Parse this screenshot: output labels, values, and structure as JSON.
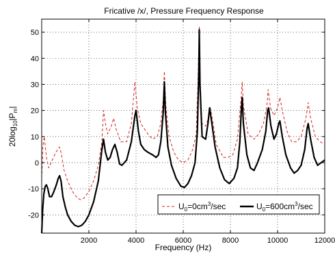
{
  "chart_data": {
    "type": "line",
    "title": "Fricative /x/, Pressure Frequency Response",
    "xlabel": "Frequency (Hz)",
    "ylabel": {
      "base": "20log",
      "sub1": "10",
      "mid": "|P",
      "sub2": "m",
      "end": "|"
    },
    "xlim": [
      0,
      12000
    ],
    "ylim": [
      -27,
      55
    ],
    "xticks": [
      2000,
      4000,
      6000,
      8000,
      10000,
      12000
    ],
    "yticks": [
      -20,
      -10,
      0,
      10,
      20,
      30,
      40,
      50
    ],
    "grid": true,
    "legend": {
      "placement": "bottom-right",
      "entries": [
        {
          "prefix": "U",
          "sub": "0",
          "mid": "=0cm",
          "sup": "3",
          "end": "/sec"
        },
        {
          "prefix": "U",
          "sub": "0",
          "mid": "=600cm",
          "sup": "3",
          "end": "/sec"
        }
      ]
    },
    "series": [
      {
        "style": "dashed",
        "color": "#d62020",
        "points": [
          [
            0,
            -6
          ],
          [
            50,
            6
          ],
          [
            110,
            10
          ],
          [
            200,
            2
          ],
          [
            300,
            -2
          ],
          [
            450,
            1
          ],
          [
            600,
            4
          ],
          [
            750,
            6
          ],
          [
            820,
            4
          ],
          [
            950,
            -3
          ],
          [
            1100,
            -7
          ],
          [
            1300,
            -11
          ],
          [
            1500,
            -13.5
          ],
          [
            1650,
            -14.2
          ],
          [
            1800,
            -13.5
          ],
          [
            2000,
            -11
          ],
          [
            2200,
            -7
          ],
          [
            2400,
            -1
          ],
          [
            2550,
            8
          ],
          [
            2620,
            20
          ],
          [
            2700,
            15
          ],
          [
            2800,
            11
          ],
          [
            2950,
            14
          ],
          [
            3050,
            17
          ],
          [
            3150,
            13
          ],
          [
            3350,
            8
          ],
          [
            3600,
            8
          ],
          [
            3800,
            15
          ],
          [
            3950,
            31
          ],
          [
            4050,
            21
          ],
          [
            4200,
            15
          ],
          [
            4350,
            13
          ],
          [
            4500,
            11
          ],
          [
            4700,
            9
          ],
          [
            4900,
            10
          ],
          [
            5050,
            15
          ],
          [
            5150,
            24
          ],
          [
            5200,
            35
          ],
          [
            5260,
            22
          ],
          [
            5400,
            10
          ],
          [
            5600,
            4
          ],
          [
            5800,
            1
          ],
          [
            6000,
            0
          ],
          [
            6200,
            1
          ],
          [
            6400,
            5
          ],
          [
            6550,
            11
          ],
          [
            6620,
            30
          ],
          [
            6680,
            52
          ],
          [
            6720,
            28
          ],
          [
            6800,
            15
          ],
          [
            6950,
            14
          ],
          [
            7100,
            18
          ],
          [
            7150,
            21
          ],
          [
            7250,
            16
          ],
          [
            7400,
            7
          ],
          [
            7700,
            2
          ],
          [
            7900,
            2
          ],
          [
            8100,
            3
          ],
          [
            8300,
            9
          ],
          [
            8450,
            24
          ],
          [
            8500,
            31
          ],
          [
            8550,
            22
          ],
          [
            8750,
            11
          ],
          [
            9000,
            9
          ],
          [
            9200,
            11
          ],
          [
            9400,
            15
          ],
          [
            9550,
            22
          ],
          [
            9600,
            28
          ],
          [
            9700,
            21
          ],
          [
            9850,
            18
          ],
          [
            10000,
            21
          ],
          [
            10100,
            25
          ],
          [
            10200,
            20
          ],
          [
            10400,
            12
          ],
          [
            10600,
            8
          ],
          [
            10800,
            8
          ],
          [
            11000,
            10
          ],
          [
            11200,
            17
          ],
          [
            11300,
            23
          ],
          [
            11400,
            17
          ],
          [
            11600,
            10
          ],
          [
            11800,
            8
          ],
          [
            12000,
            7
          ]
        ]
      },
      {
        "style": "solid",
        "color": "#000000",
        "points": [
          [
            0,
            -27
          ],
          [
            40,
            -18
          ],
          [
            90,
            -12
          ],
          [
            150,
            -9
          ],
          [
            200,
            -8.5
          ],
          [
            260,
            -10
          ],
          [
            330,
            -13
          ],
          [
            420,
            -13
          ],
          [
            520,
            -11
          ],
          [
            620,
            -8.5
          ],
          [
            700,
            -6
          ],
          [
            760,
            -5
          ],
          [
            820,
            -7
          ],
          [
            900,
            -13
          ],
          [
            1000,
            -17
          ],
          [
            1100,
            -20
          ],
          [
            1250,
            -22.5
          ],
          [
            1400,
            -24
          ],
          [
            1550,
            -24.5
          ],
          [
            1700,
            -24
          ],
          [
            1850,
            -22.5
          ],
          [
            2000,
            -20
          ],
          [
            2200,
            -15
          ],
          [
            2400,
            -7
          ],
          [
            2550,
            5
          ],
          [
            2620,
            9
          ],
          [
            2700,
            4
          ],
          [
            2800,
            1
          ],
          [
            2900,
            2
          ],
          [
            3000,
            5
          ],
          [
            3100,
            7
          ],
          [
            3200,
            4
          ],
          [
            3300,
            -0.5
          ],
          [
            3400,
            -1
          ],
          [
            3600,
            1
          ],
          [
            3800,
            8
          ],
          [
            3950,
            18
          ],
          [
            4000,
            20
          ],
          [
            4100,
            12
          ],
          [
            4200,
            7
          ],
          [
            4350,
            5
          ],
          [
            4500,
            4
          ],
          [
            4700,
            3
          ],
          [
            4850,
            2
          ],
          [
            4950,
            3
          ],
          [
            5050,
            8
          ],
          [
            5150,
            19
          ],
          [
            5200,
            31
          ],
          [
            5240,
            20
          ],
          [
            5350,
            6
          ],
          [
            5500,
            -1
          ],
          [
            5700,
            -6
          ],
          [
            5900,
            -9
          ],
          [
            6050,
            -9.5
          ],
          [
            6200,
            -8
          ],
          [
            6350,
            -5
          ],
          [
            6500,
            0
          ],
          [
            6600,
            12
          ],
          [
            6660,
            35
          ],
          [
            6680,
            51
          ],
          [
            6710,
            30
          ],
          [
            6800,
            10
          ],
          [
            6950,
            9
          ],
          [
            7050,
            15
          ],
          [
            7120,
            21
          ],
          [
            7200,
            16
          ],
          [
            7350,
            6
          ],
          [
            7550,
            -2
          ],
          [
            7750,
            -6.5
          ],
          [
            7950,
            -8
          ],
          [
            8150,
            -6
          ],
          [
            8300,
            -2
          ],
          [
            8400,
            8
          ],
          [
            8460,
            20
          ],
          [
            8500,
            25
          ],
          [
            8550,
            15
          ],
          [
            8700,
            3
          ],
          [
            8850,
            -2
          ],
          [
            9000,
            -3
          ],
          [
            9150,
            0
          ],
          [
            9350,
            5
          ],
          [
            9500,
            12
          ],
          [
            9580,
            20
          ],
          [
            9620,
            21
          ],
          [
            9720,
            14
          ],
          [
            9850,
            9
          ],
          [
            9950,
            11
          ],
          [
            10050,
            15
          ],
          [
            10100,
            16
          ],
          [
            10200,
            10
          ],
          [
            10350,
            3
          ],
          [
            10550,
            -2
          ],
          [
            10700,
            -4
          ],
          [
            10850,
            -3
          ],
          [
            11000,
            -1
          ],
          [
            11150,
            5
          ],
          [
            11250,
            13
          ],
          [
            11300,
            15
          ],
          [
            11400,
            9
          ],
          [
            11550,
            2
          ],
          [
            11700,
            -1
          ],
          [
            11850,
            0
          ],
          [
            12000,
            1
          ]
        ]
      }
    ]
  }
}
